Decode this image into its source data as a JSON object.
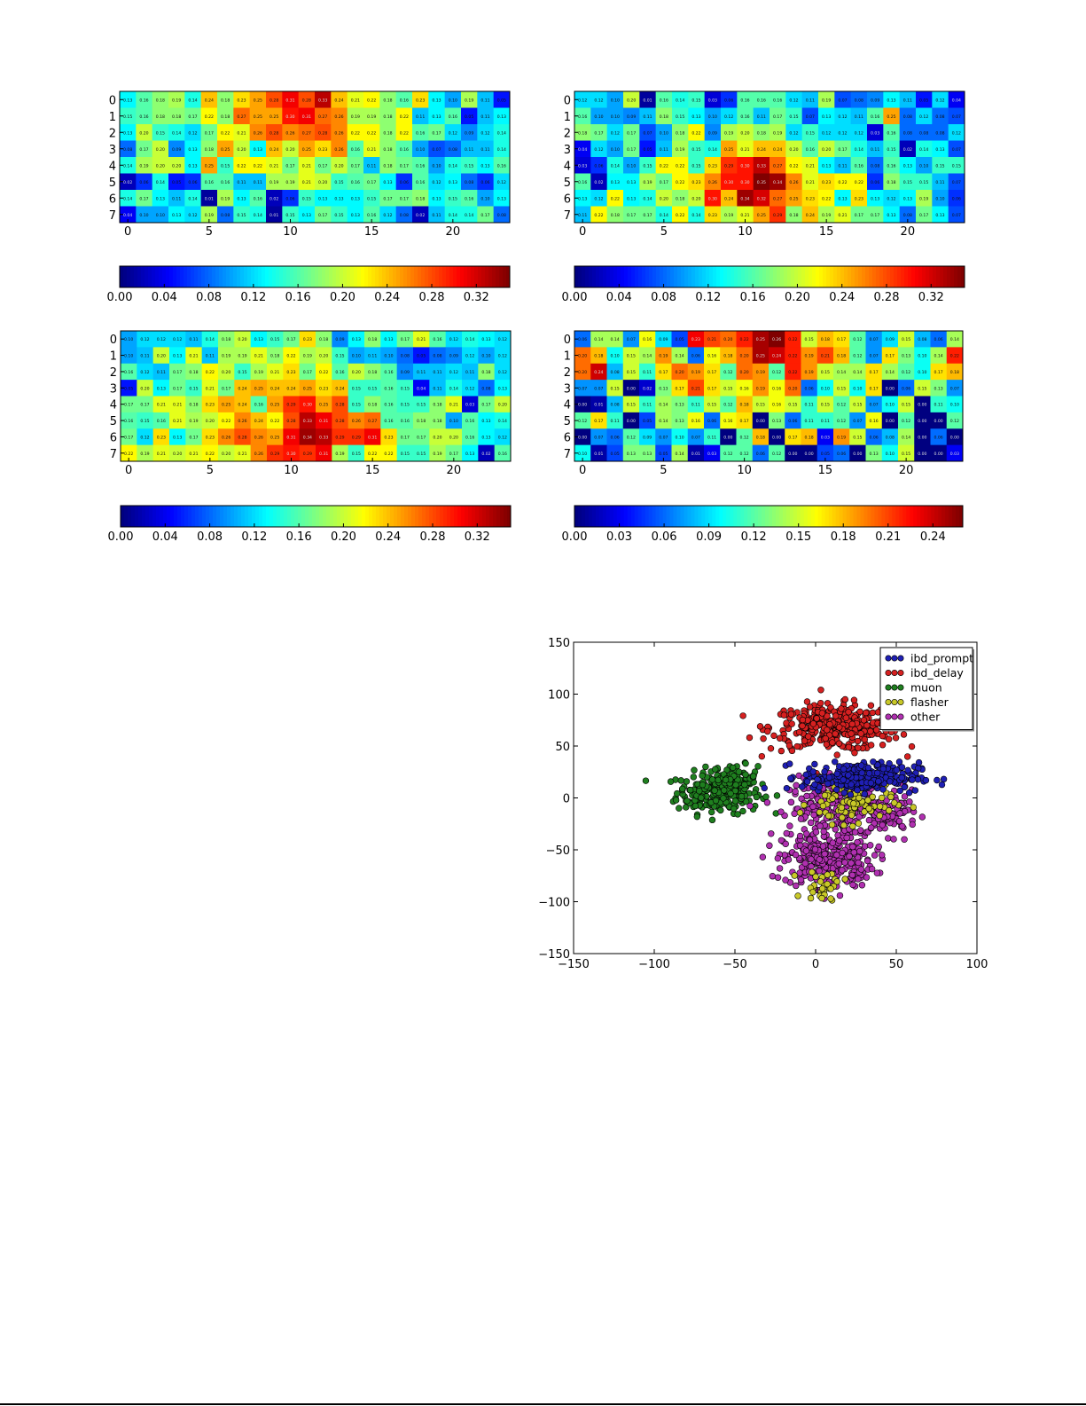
{
  "colormap": "jet",
  "chart_data": [
    {
      "type": "heatmap",
      "title": "",
      "rows": 8,
      "cols": 24,
      "xticks": [
        0,
        5,
        10,
        15,
        20
      ],
      "yticks": [
        0,
        1,
        2,
        3,
        4,
        5,
        6,
        7
      ],
      "vmin": 0,
      "vmax": 0.35,
      "colorbar_ticks": [
        "0.00",
        "0.04",
        "0.08",
        "0.12",
        "0.16",
        "0.20",
        "0.24",
        "0.28",
        "0.32"
      ],
      "values": [
        [
          0.13,
          0.16,
          0.18,
          0.19,
          0.14,
          0.24,
          0.18,
          0.23,
          0.25,
          0.28,
          0.31,
          0.28,
          0.33,
          0.24,
          0.21,
          0.22,
          0.18,
          0.16,
          0.23,
          0.13,
          0.1,
          0.19,
          0.11,
          0.05
        ],
        [
          0.15,
          0.16,
          0.18,
          0.18,
          0.17,
          0.22,
          0.18,
          0.27,
          0.25,
          0.25,
          0.3,
          0.31,
          0.27,
          0.26,
          0.19,
          0.19,
          0.18,
          0.22,
          0.11,
          0.13,
          0.16,
          0.05,
          0.11,
          0.13
        ],
        [
          0.13,
          0.2,
          0.15,
          0.14,
          0.12,
          0.17,
          0.22,
          0.21,
          0.26,
          0.28,
          0.26,
          0.27,
          0.28,
          0.26,
          0.22,
          0.22,
          0.18,
          0.22,
          0.16,
          0.17,
          0.12,
          0.09,
          0.12,
          0.14
        ],
        [
          0.08,
          0.17,
          0.2,
          0.09,
          0.13,
          0.18,
          0.25,
          0.2,
          0.13,
          0.24,
          0.2,
          0.25,
          0.23,
          0.26,
          0.16,
          0.21,
          0.18,
          0.16,
          0.1,
          0.07,
          0.08,
          0.11,
          0.11,
          0.14
        ],
        [
          0.14,
          0.19,
          0.2,
          0.2,
          0.13,
          0.25,
          0.15,
          0.22,
          0.22,
          0.21,
          0.17,
          0.21,
          0.17,
          0.2,
          0.17,
          0.11,
          0.18,
          0.17,
          0.16,
          0.1,
          0.14,
          0.15,
          0.13,
          0.16
        ],
        [
          0.02,
          0.06,
          0.14,
          0.05,
          0.06,
          0.16,
          0.16,
          0.11,
          0.11,
          0.19,
          0.19,
          0.21,
          0.2,
          0.15,
          0.16,
          0.17,
          0.13,
          0.06,
          0.16,
          0.12,
          0.13,
          0.08,
          0.06,
          0.12
        ],
        [
          0.14,
          0.17,
          0.13,
          0.11,
          0.14,
          0.01,
          0.19,
          0.13,
          0.16,
          0.02,
          0.06,
          0.15,
          0.13,
          0.13,
          0.13,
          0.15,
          0.17,
          0.17,
          0.18,
          0.13,
          0.15,
          0.16,
          0.1,
          0.13
        ],
        [
          0.04,
          0.1,
          0.1,
          0.13,
          0.12,
          0.19,
          0.08,
          0.15,
          0.14,
          0.01,
          0.15,
          0.13,
          0.17,
          0.15,
          0.13,
          0.16,
          0.12,
          0.08,
          0.02,
          0.11,
          0.14,
          0.14,
          0.17,
          0.08
        ]
      ]
    },
    {
      "type": "heatmap",
      "title": "",
      "rows": 8,
      "cols": 24,
      "xticks": [
        0,
        5,
        10,
        15,
        20
      ],
      "yticks": [
        0,
        1,
        2,
        3,
        4,
        5,
        6,
        7
      ],
      "vmin": 0,
      "vmax": 0.35,
      "colorbar_ticks": [
        "0.00",
        "0.04",
        "0.08",
        "0.12",
        "0.16",
        "0.20",
        "0.24",
        "0.28",
        "0.32"
      ],
      "values": [
        [
          0.12,
          0.12,
          0.1,
          0.2,
          0.01,
          0.16,
          0.14,
          0.15,
          0.03,
          0.06,
          0.16,
          0.16,
          0.16,
          0.12,
          0.11,
          0.19,
          0.07,
          0.08,
          0.09,
          0.13,
          0.11,
          0.05,
          0.12,
          0.04
        ],
        [
          0.16,
          0.1,
          0.1,
          0.09,
          0.11,
          0.18,
          0.15,
          0.13,
          0.1,
          0.12,
          0.16,
          0.11,
          0.17,
          0.15,
          0.07,
          0.13,
          0.12,
          0.11,
          0.16,
          0.25,
          0.08,
          0.12,
          0.08,
          0.07
        ],
        [
          0.18,
          0.17,
          0.12,
          0.17,
          0.07,
          0.1,
          0.18,
          0.22,
          0.09,
          0.19,
          0.2,
          0.18,
          0.19,
          0.12,
          0.15,
          0.12,
          0.12,
          0.12,
          0.03,
          0.16,
          0.08,
          0.08,
          0.08,
          0.12
        ],
        [
          0.04,
          0.12,
          0.1,
          0.17,
          0.05,
          0.11,
          0.19,
          0.15,
          0.14,
          0.25,
          0.21,
          0.24,
          0.24,
          0.2,
          0.16,
          0.2,
          0.17,
          0.14,
          0.11,
          0.15,
          0.02,
          0.14,
          0.13,
          0.07
        ],
        [
          0.03,
          0.06,
          0.14,
          0.1,
          0.15,
          0.22,
          0.22,
          0.15,
          0.23,
          0.29,
          0.3,
          0.33,
          0.27,
          0.22,
          0.21,
          0.13,
          0.11,
          0.16,
          0.08,
          0.16,
          0.13,
          0.1,
          0.15,
          0.15
        ],
        [
          0.16,
          0.02,
          0.13,
          0.13,
          0.19,
          0.17,
          0.22,
          0.23,
          0.26,
          0.3,
          0.3,
          0.35,
          0.34,
          0.26,
          0.21,
          0.23,
          0.22,
          0.22,
          0.06,
          0.18,
          0.15,
          0.15,
          0.11,
          0.07
        ],
        [
          0.13,
          0.12,
          0.22,
          0.13,
          0.14,
          0.2,
          0.18,
          0.2,
          0.3,
          0.24,
          0.34,
          0.32,
          0.27,
          0.25,
          0.23,
          0.22,
          0.13,
          0.23,
          0.13,
          0.12,
          0.13,
          0.19,
          0.1,
          0.06
        ],
        [
          0.11,
          0.22,
          0.18,
          0.17,
          0.17,
          0.14,
          0.22,
          0.14,
          0.23,
          0.19,
          0.21,
          0.25,
          0.29,
          0.18,
          0.24,
          0.19,
          0.21,
          0.17,
          0.17,
          0.13,
          0.08,
          0.17,
          0.13,
          0.07
        ]
      ]
    },
    {
      "type": "heatmap",
      "title": "",
      "rows": 8,
      "cols": 24,
      "xticks": [
        0,
        5,
        10,
        15,
        20
      ],
      "yticks": [
        0,
        1,
        2,
        3,
        4,
        5,
        6,
        7
      ],
      "vmin": 0,
      "vmax": 0.35,
      "colorbar_ticks": [
        "0.00",
        "0.04",
        "0.08",
        "0.12",
        "0.16",
        "0.20",
        "0.24",
        "0.28",
        "0.32"
      ],
      "values": [
        [
          0.1,
          0.12,
          0.12,
          0.12,
          0.11,
          0.14,
          0.18,
          0.2,
          0.13,
          0.15,
          0.17,
          0.23,
          0.18,
          0.09,
          0.13,
          0.18,
          0.13,
          0.17,
          0.21,
          0.16,
          0.12,
          0.14,
          0.13,
          0.12
        ],
        [
          0.1,
          0.11,
          0.2,
          0.13,
          0.21,
          0.11,
          0.19,
          0.19,
          0.21,
          0.18,
          0.22,
          0.19,
          0.2,
          0.15,
          0.1,
          0.11,
          0.1,
          0.08,
          0.05,
          0.08,
          0.09,
          0.12,
          0.1,
          0.12
        ],
        [
          0.16,
          0.12,
          0.11,
          0.17,
          0.18,
          0.22,
          0.2,
          0.15,
          0.19,
          0.21,
          0.23,
          0.17,
          0.22,
          0.16,
          0.2,
          0.18,
          0.16,
          0.09,
          0.11,
          0.11,
          0.12,
          0.11,
          0.18,
          0.12
        ],
        [
          0.05,
          0.2,
          0.13,
          0.17,
          0.15,
          0.21,
          0.17,
          0.24,
          0.25,
          0.24,
          0.24,
          0.25,
          0.23,
          0.24,
          0.15,
          0.15,
          0.16,
          0.15,
          0.04,
          0.11,
          0.14,
          0.12,
          0.08,
          0.13
        ],
        [
          0.17,
          0.17,
          0.21,
          0.21,
          0.18,
          0.23,
          0.25,
          0.24,
          0.16,
          0.25,
          0.29,
          0.3,
          0.25,
          0.28,
          0.15,
          0.18,
          0.16,
          0.15,
          0.15,
          0.18,
          0.21,
          0.03,
          0.17,
          0.2
        ],
        [
          0.16,
          0.15,
          0.16,
          0.21,
          0.19,
          0.2,
          0.22,
          0.26,
          0.24,
          0.22,
          0.28,
          0.33,
          0.31,
          0.28,
          0.26,
          0.27,
          0.16,
          0.16,
          0.18,
          0.18,
          0.1,
          0.16,
          0.13,
          0.14
        ],
        [
          0.17,
          0.12,
          0.23,
          0.13,
          0.17,
          0.23,
          0.26,
          0.28,
          0.26,
          0.25,
          0.31,
          0.34,
          0.33,
          0.29,
          0.29,
          0.31,
          0.23,
          0.17,
          0.17,
          0.2,
          0.2,
          0.16,
          0.13,
          0.12
        ],
        [
          0.22,
          0.19,
          0.21,
          0.2,
          0.21,
          0.22,
          0.2,
          0.21,
          0.26,
          0.29,
          0.3,
          0.29,
          0.31,
          0.19,
          0.15,
          0.22,
          0.22,
          0.15,
          0.15,
          0.19,
          0.17,
          0.13,
          0.02,
          0.16
        ]
      ]
    },
    {
      "type": "heatmap",
      "title": "",
      "rows": 8,
      "cols": 24,
      "xticks": [
        0,
        5,
        10,
        15,
        20
      ],
      "yticks": [
        0,
        1,
        2,
        3,
        4,
        5,
        6,
        7
      ],
      "vmin": 0,
      "vmax": 0.26,
      "colorbar_ticks": [
        "0.00",
        "0.03",
        "0.06",
        "0.09",
        "0.12",
        "0.15",
        "0.18",
        "0.21",
        "0.24"
      ],
      "values": [
        [
          0.06,
          0.14,
          0.14,
          0.07,
          0.16,
          0.09,
          0.05,
          0.23,
          0.21,
          0.2,
          0.22,
          0.25,
          0.26,
          0.22,
          0.15,
          0.18,
          0.17,
          0.12,
          0.07,
          0.09,
          0.15,
          0.08,
          0.06,
          0.14
        ],
        [
          0.2,
          0.18,
          0.1,
          0.15,
          0.14,
          0.19,
          0.14,
          0.06,
          0.16,
          0.18,
          0.2,
          0.25,
          0.24,
          0.22,
          0.19,
          0.21,
          0.18,
          0.12,
          0.07,
          0.17,
          0.13,
          0.1,
          0.14,
          0.22
        ],
        [
          0.2,
          0.24,
          0.08,
          0.15,
          0.11,
          0.17,
          0.2,
          0.19,
          0.17,
          0.12,
          0.2,
          0.19,
          0.12,
          0.22,
          0.19,
          0.15,
          0.14,
          0.14,
          0.17,
          0.14,
          0.12,
          0.1,
          0.17,
          0.18
        ],
        [
          0.07,
          0.07,
          0.15,
          0.0,
          0.02,
          0.13,
          0.17,
          0.21,
          0.17,
          0.15,
          0.16,
          0.19,
          0.16,
          0.2,
          0.06,
          0.1,
          0.15,
          0.1,
          0.17,
          0.0,
          0.06,
          0.15,
          0.13,
          0.07
        ],
        [
          0.0,
          0.01,
          0.08,
          0.15,
          0.11,
          0.14,
          0.13,
          0.11,
          0.15,
          0.12,
          0.18,
          0.15,
          0.16,
          0.15,
          0.11,
          0.15,
          0.12,
          0.15,
          0.07,
          0.1,
          0.15,
          0.0,
          0.11,
          0.1
        ],
        [
          0.12,
          0.17,
          0.11,
          0.0,
          0.05,
          0.14,
          0.13,
          0.16,
          0.06,
          0.16,
          0.17,
          0.0,
          0.13,
          0.06,
          0.11,
          0.11,
          0.12,
          0.07,
          0.16,
          0.0,
          0.12,
          0.0,
          0.0,
          0.12
        ],
        [
          0.0,
          0.07,
          0.06,
          0.12,
          0.09,
          0.07,
          0.1,
          0.07,
          0.11,
          0.0,
          0.12,
          0.18,
          0.0,
          0.17,
          0.18,
          0.03,
          0.19,
          0.15,
          0.06,
          0.08,
          0.14,
          0.0,
          0.06,
          0.0
        ],
        [
          0.1,
          0.01,
          0.05,
          0.13,
          0.13,
          0.05,
          0.14,
          0.01,
          0.03,
          0.12,
          0.12,
          0.06,
          0.12,
          0.0,
          0.0,
          0.05,
          0.06,
          0.0,
          0.13,
          0.1,
          0.15,
          0.0,
          0.0,
          0.03
        ]
      ]
    },
    {
      "type": "scatter",
      "title": "",
      "xlabel": "",
      "ylabel": "",
      "xlim": [
        -150,
        100
      ],
      "ylim": [
        -150,
        150
      ],
      "xticks": [
        "−150",
        "−100",
        "−50",
        "0",
        "50",
        "100"
      ],
      "yticks": [
        "150",
        "100",
        "50",
        "0",
        "−50",
        "−100",
        "−150"
      ],
      "legend_position": "top-right",
      "series": [
        {
          "name": "ibd_prompt",
          "color": "#1f1fb4",
          "clusters": [
            {
              "cx": 28,
              "cy": 20,
              "sx": 18,
              "sy": 7,
              "n": 260
            }
          ]
        },
        {
          "name": "ibd_delay",
          "color": "#d62020",
          "clusters": [
            {
              "cx": 12,
              "cy": 68,
              "sx": 20,
              "sy": 11,
              "n": 360
            }
          ]
        },
        {
          "name": "muon",
          "color": "#1f7f1f",
          "clusters": [
            {
              "cx": -60,
              "cy": 5,
              "sx": 13,
              "sy": 10,
              "n": 230
            },
            {
              "cx": -50,
              "cy": 20,
              "sx": 7,
              "sy": 6,
              "n": 60
            }
          ]
        },
        {
          "name": "flasher",
          "color": "#c8c828",
          "clusters": [
            {
              "cx": 22,
              "cy": -5,
              "sx": 13,
              "sy": 10,
              "n": 90
            },
            {
              "cx": 5,
              "cy": -85,
              "sx": 6,
              "sy": 8,
              "n": 30
            }
          ]
        },
        {
          "name": "other",
          "color": "#b030b0",
          "clusters": [
            {
              "cx": 8,
              "cy": -60,
              "sx": 14,
              "sy": 13,
              "n": 300
            },
            {
              "cx": 12,
              "cy": -10,
              "sx": 14,
              "sy": 14,
              "n": 260
            },
            {
              "cx": 45,
              "cy": -15,
              "sx": 9,
              "sy": 10,
              "n": 90
            }
          ]
        }
      ]
    }
  ]
}
